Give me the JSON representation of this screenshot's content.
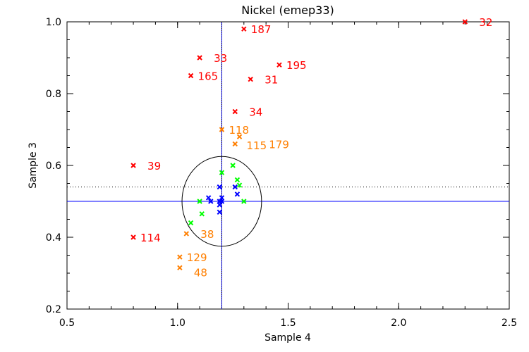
{
  "chart_data": {
    "type": "scatter",
    "title": "Nickel (emep33)",
    "xlabel": "Sample 4",
    "ylabel": "Sample 3",
    "xlim": [
      0.5,
      2.5
    ],
    "ylim": [
      0.2,
      1.0
    ],
    "x_ticks": [
      "0.5",
      "1.0",
      "1.5",
      "2.0",
      "2.5"
    ],
    "y_ticks": [
      "0.2",
      "0.4",
      "0.6",
      "0.8",
      "1.0"
    ],
    "reference_lines": {
      "vertical_x": 1.2,
      "horizontal_y": 0.5,
      "dotted_horizontal_y": 0.54
    },
    "ellipse": {
      "cx": 1.2,
      "cy": 0.5,
      "rx": 0.18,
      "ry": 0.125
    },
    "colors": {
      "red": "#ff0000",
      "orange": "#ff7f00",
      "green": "#00ff00",
      "blue": "#0000ff",
      "ref_line": "#0000ff"
    },
    "series": [
      {
        "name": "red",
        "color": "#ff0000",
        "points": [
          {
            "x": 2.3,
            "y": 1.0,
            "label": "32"
          },
          {
            "x": 1.3,
            "y": 0.98,
            "label": "187"
          },
          {
            "x": 1.1,
            "y": 0.9,
            "label": "33"
          },
          {
            "x": 1.46,
            "y": 0.88,
            "label": "195"
          },
          {
            "x": 1.06,
            "y": 0.85,
            "label": "165"
          },
          {
            "x": 1.33,
            "y": 0.84,
            "label": "31"
          },
          {
            "x": 1.26,
            "y": 0.75,
            "label": "34"
          },
          {
            "x": 0.8,
            "y": 0.6,
            "label": "39"
          },
          {
            "x": 0.8,
            "y": 0.4,
            "label": "114"
          }
        ]
      },
      {
        "name": "orange",
        "color": "#ff7f00",
        "points": [
          {
            "x": 1.2,
            "y": 0.7,
            "label": "118"
          },
          {
            "x": 1.28,
            "y": 0.68,
            "label": "115"
          },
          {
            "x": 1.26,
            "y": 0.66,
            "label": "179"
          },
          {
            "x": 1.04,
            "y": 0.41,
            "label": "38"
          },
          {
            "x": 1.01,
            "y": 0.345,
            "label": "129"
          },
          {
            "x": 1.01,
            "y": 0.315,
            "label": "48"
          }
        ]
      },
      {
        "name": "green",
        "color": "#00ff00",
        "points": [
          {
            "x": 1.25,
            "y": 0.6
          },
          {
            "x": 1.2,
            "y": 0.58
          },
          {
            "x": 1.27,
            "y": 0.56
          },
          {
            "x": 1.28,
            "y": 0.545
          },
          {
            "x": 1.3,
            "y": 0.5
          },
          {
            "x": 1.1,
            "y": 0.5
          },
          {
            "x": 1.11,
            "y": 0.465
          },
          {
            "x": 1.06,
            "y": 0.44
          }
        ]
      },
      {
        "name": "blue",
        "color": "#0000ff",
        "points": [
          {
            "x": 1.19,
            "y": 0.54
          },
          {
            "x": 1.26,
            "y": 0.54
          },
          {
            "x": 1.27,
            "y": 0.52
          },
          {
            "x": 1.14,
            "y": 0.51
          },
          {
            "x": 1.15,
            "y": 0.5
          },
          {
            "x": 1.2,
            "y": 0.51
          },
          {
            "x": 1.19,
            "y": 0.5
          },
          {
            "x": 1.2,
            "y": 0.5
          },
          {
            "x": 1.19,
            "y": 0.49
          },
          {
            "x": 1.19,
            "y": 0.47
          }
        ]
      }
    ]
  }
}
